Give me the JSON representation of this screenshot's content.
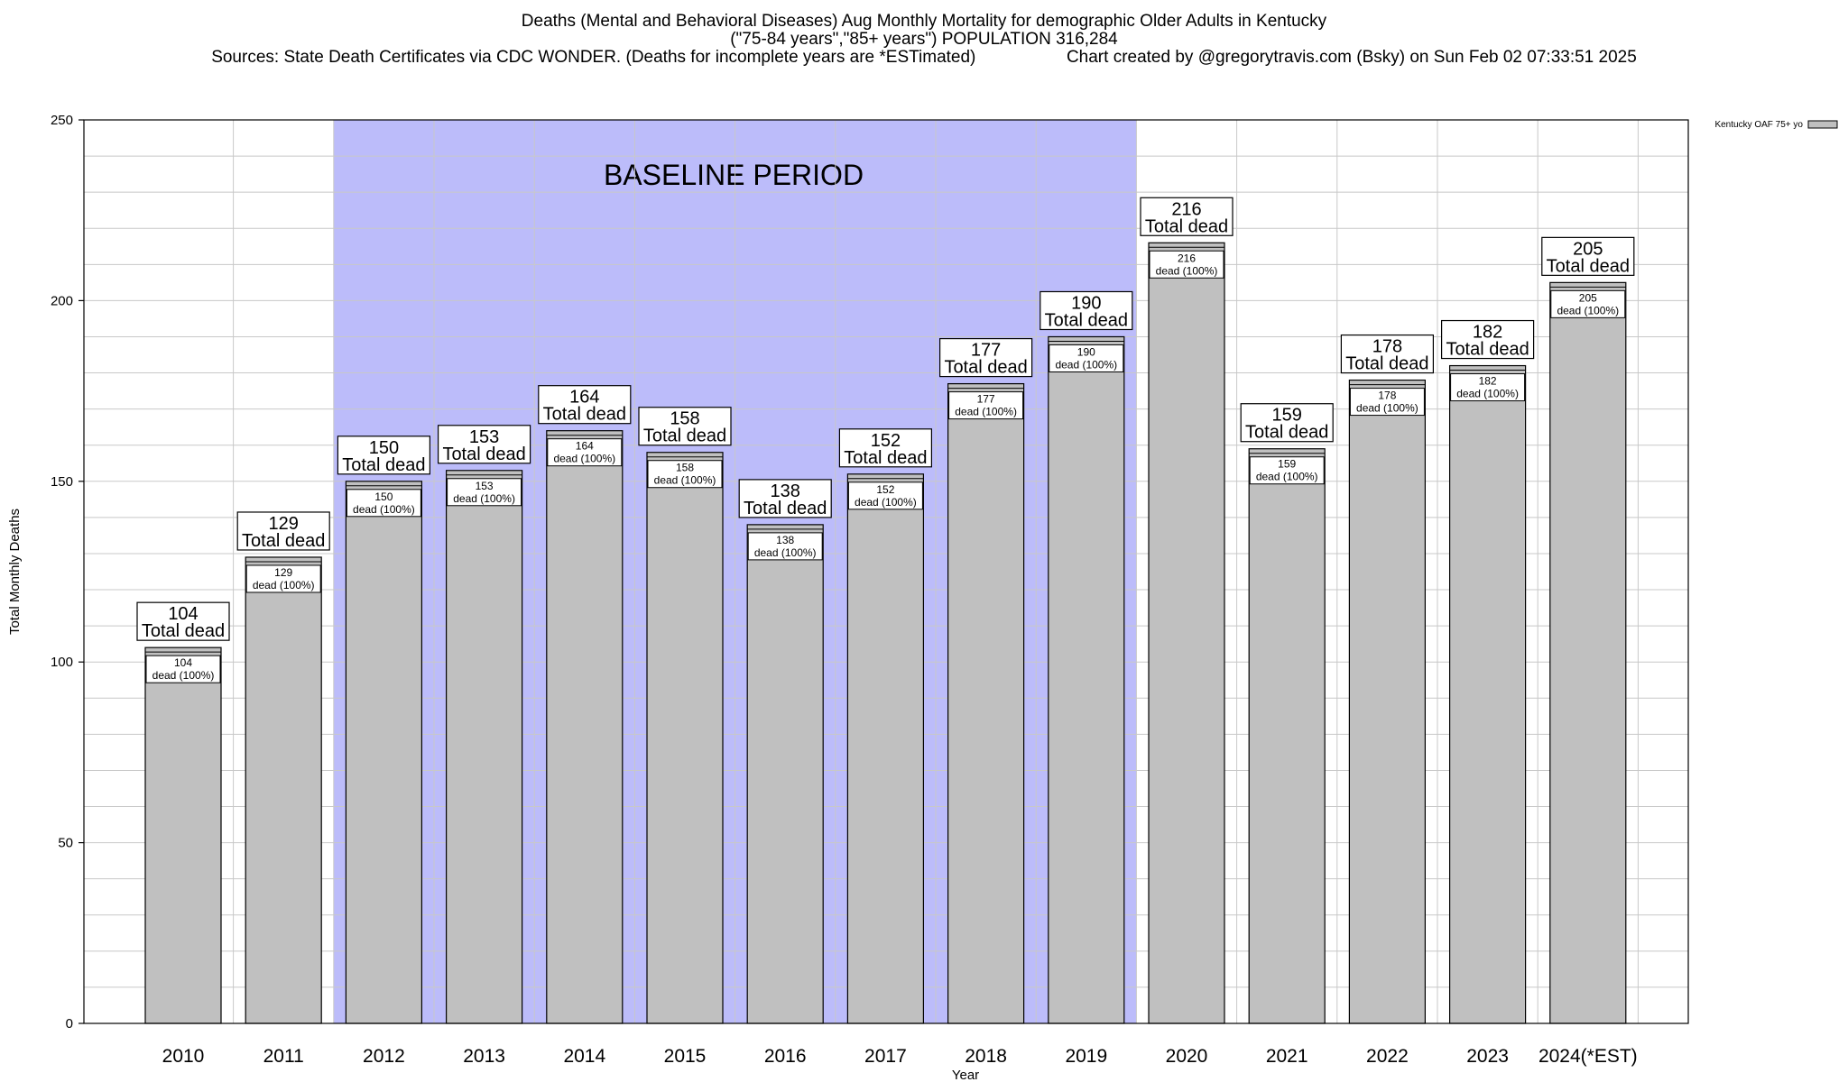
{
  "header": {
    "title_line1": "Deaths (Mental and Behavioral Diseases) Aug Monthly Mortality for demographic Older Adults in Kentucky",
    "title_line2": "(\"75-84 years\",\"85+ years\") POPULATION 316,284",
    "sources": "Sources: State Death Certificates via CDC WONDER. (Deaths for incomplete years are *ESTimated)",
    "credit": "Chart created by @gregorytravis.com (Bsky) on Sun Feb 02 07:33:51 2025"
  },
  "chart_data": {
    "type": "bar",
    "xlabel": "Year",
    "ylabel": "Total Monthly Deaths",
    "ylim": [
      0,
      250
    ],
    "y_ticks": [
      0,
      50,
      100,
      150,
      200,
      250
    ],
    "grid": true,
    "legend": {
      "label": "Kentucky OAF 75+ yo",
      "placement": "top-right"
    },
    "categories": [
      "2010",
      "2011",
      "2012",
      "2013",
      "2014",
      "2015",
      "2016",
      "2017",
      "2018",
      "2019",
      "2020",
      "2021",
      "2022",
      "2023",
      "2024(*EST)"
    ],
    "series": [
      {
        "name": "Kentucky OAF 75+ yo",
        "values": [
          104,
          129,
          150,
          153,
          164,
          158,
          138,
          152,
          177,
          190,
          216,
          159,
          178,
          182,
          205
        ]
      }
    ],
    "baseline_period": {
      "label": "BASELINE PERIOD",
      "start": "2012",
      "end": "2019"
    },
    "annotation_total_text": "Total dead",
    "annotation_inner_text": "dead (100%)",
    "colors": {
      "bar": "#c0c0c0",
      "baseline": "#bcbcfa",
      "grid": "#c8c8c8"
    }
  }
}
